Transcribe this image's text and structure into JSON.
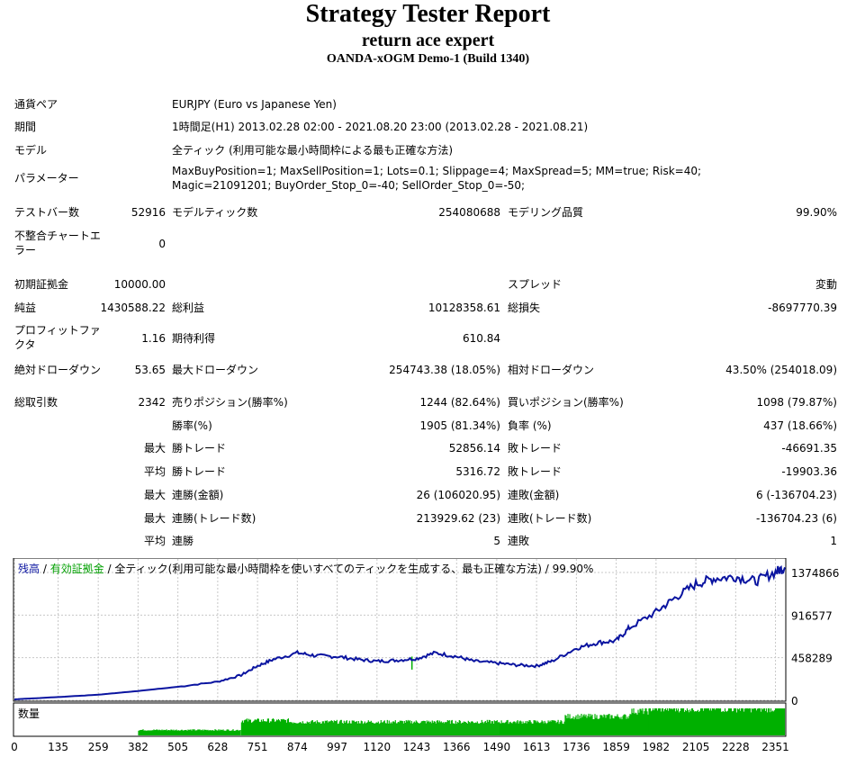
{
  "header": {
    "title": "Strategy Tester Report",
    "expert": "return ace expert",
    "server": "OANDA-xOGM Demo-1 (Build 1340)"
  },
  "info": {
    "pair_label": "通貨ペア",
    "pair_value": "EURJPY (Euro vs Japanese Yen)",
    "period_label": "期間",
    "period_value": "1時間足(H1) 2013.02.28 02:00 - 2021.08.20 23:00 (2013.02.28 - 2021.08.21)",
    "model_label": "モデル",
    "model_value": "全ティック (利用可能な最小時間枠による最も正確な方法)",
    "params_label": "パラメーター",
    "params_value": "MaxBuyPosition=1; MaxSellPosition=1; Lots=0.1; Slippage=4; MaxSpread=5; MM=true; Risk=40; Magic=21091201; BuyOrder_Stop_0=-40; SellOrder_Stop_0=-50;"
  },
  "stats": {
    "bars_label": "テストバー数",
    "bars_value": "52916",
    "ticks_label": "モデルティック数",
    "ticks_value": "254080688",
    "quality_label": "モデリング品質",
    "quality_value": "99.90%",
    "mismatch_label": "不整合チャートエラー",
    "mismatch_value": "0",
    "deposit_label": "初期証拠金",
    "deposit_value": "10000.00",
    "spread_label": "スプレッド",
    "spread_value": "変動",
    "net_label": "純益",
    "net_value": "1430588.22",
    "gross_profit_label": "総利益",
    "gross_profit_value": "10128358.61",
    "gross_loss_label": "総損失",
    "gross_loss_value": "-8697770.39",
    "pf_label": "プロフィットファクタ",
    "pf_value": "1.16",
    "payoff_label": "期待利得",
    "payoff_value": "610.84",
    "abs_dd_label": "絶対ドローダウン",
    "abs_dd_value": "53.65",
    "max_dd_label": "最大ドローダウン",
    "max_dd_value": "254743.38 (18.05%)",
    "rel_dd_label": "相対ドローダウン",
    "rel_dd_value": "43.50% (254018.09)",
    "trades_label": "総取引数",
    "trades_value": "2342",
    "short_label": "売りポジション(勝率%)",
    "short_value": "1244 (82.64%)",
    "long_label": "買いポジション(勝率%)",
    "long_value": "1098 (79.87%)",
    "winrate_label": "勝率(%)",
    "winrate_value": "1905 (81.34%)",
    "lossrate_label": "負率 (%)",
    "lossrate_value": "437 (18.66%)",
    "max_label": "最大",
    "avg_label": "平均",
    "win_trade_label": "勝トレード",
    "loss_trade_label": "敗トレード",
    "max_win_value": "52856.14",
    "max_loss_value": "-46691.35",
    "avg_win_value": "5316.72",
    "avg_loss_value": "-19903.36",
    "cons_win_money_label": "連勝(金額)",
    "cons_win_money_value": "26 (106020.95)",
    "cons_loss_money_label": "連敗(金額)",
    "cons_loss_money_value": "6 (-136704.23)",
    "cons_win_trades_label": "連勝(トレード数)",
    "cons_win_trades_value": "213929.62 (23)",
    "cons_loss_trades_label": "連敗(トレード数)",
    "cons_loss_trades_value": "-136704.23 (6)",
    "cons_win_label": "連勝",
    "cons_win_value": "5",
    "cons_loss_label": "連敗",
    "cons_loss_value": "1"
  },
  "chart_data": {
    "type": "line",
    "legend_balance": "残高",
    "legend_sep": " / ",
    "legend_equity": "有効証拠金",
    "legend_rest": " / 全ティック(利用可能な最小時間枠を使いすべてのティックを生成する、最も正確な方法) / 99.90%",
    "volume_label": "数量",
    "y_ticks": [
      "1374866",
      "916577",
      "458289",
      "0"
    ],
    "y_tick_values": [
      1374866,
      916577,
      458289,
      0
    ],
    "ylim": [
      0,
      1520000
    ],
    "xlim": [
      0,
      2380
    ],
    "x_ticks": [
      "0",
      "135",
      "259",
      "382",
      "505",
      "628",
      "751",
      "874",
      "997",
      "1120",
      "1243",
      "1366",
      "1490",
      "1613",
      "1736",
      "1859",
      "1982",
      "2105",
      "2228",
      "2351"
    ],
    "x_tick_values": [
      0,
      135,
      259,
      382,
      505,
      628,
      751,
      874,
      997,
      1120,
      1243,
      1366,
      1490,
      1613,
      1736,
      1859,
      1982,
      2105,
      2228,
      2351
    ],
    "balance_x": [
      0,
      135,
      259,
      382,
      505,
      628,
      700,
      751,
      800,
      874,
      930,
      997,
      1060,
      1120,
      1180,
      1243,
      1300,
      1366,
      1420,
      1490,
      1550,
      1613,
      1660,
      1736,
      1800,
      1859,
      1900,
      1982,
      2040,
      2105,
      2160,
      2228,
      2290,
      2351,
      2380
    ],
    "balance_y": [
      10000,
      35000,
      60000,
      100000,
      145000,
      200000,
      270000,
      370000,
      440000,
      510000,
      480000,
      470000,
      440000,
      420000,
      430000,
      450000,
      510000,
      470000,
      420000,
      400000,
      380000,
      370000,
      420000,
      560000,
      620000,
      640000,
      780000,
      950000,
      1100000,
      1250000,
      1310000,
      1330000,
      1280000,
      1380000,
      1430000
    ],
    "equity_dip_x": 1228,
    "equity_dip_y": [
      330000,
      470000
    ],
    "volume_levels": [
      {
        "from": 0,
        "to": 382,
        "level": 0
      },
      {
        "from": 382,
        "to": 700,
        "level": 0.2
      },
      {
        "from": 700,
        "to": 850,
        "level": 0.55
      },
      {
        "from": 850,
        "to": 1500,
        "level": 0.5
      },
      {
        "from": 1500,
        "to": 1700,
        "level": 0.5
      },
      {
        "from": 1700,
        "to": 1900,
        "level": 0.7
      },
      {
        "from": 1900,
        "to": 1960,
        "level": 0.9
      },
      {
        "from": 1960,
        "to": 2380,
        "level": 1.0
      }
    ],
    "colors": {
      "balance": "#0a14a0",
      "equity": "#00b000",
      "volume": "#00b000",
      "grid": "#c8c8c8"
    }
  }
}
